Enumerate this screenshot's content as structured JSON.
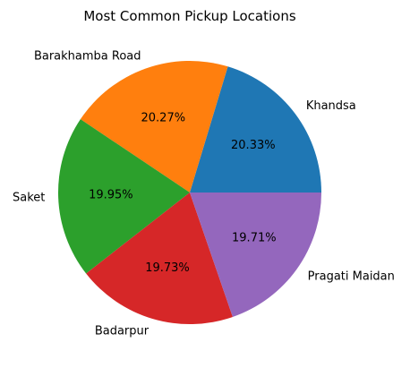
{
  "chart_data": {
    "type": "pie",
    "title": "Most Common Pickup Locations",
    "categories": [
      "Khandsa",
      "Barakhamba Road",
      "Saket",
      "Badarpur",
      "Pragati Maidan"
    ],
    "values": [
      20.33,
      20.27,
      19.95,
      19.73,
      19.71
    ],
    "value_labels": [
      "20.33%",
      "20.27%",
      "19.95%",
      "19.73%",
      "19.71%"
    ],
    "colors": [
      "#1f77b4",
      "#ff7f0e",
      "#2ca02c",
      "#d62728",
      "#9467bd"
    ],
    "start_angle_deg": 0,
    "direction": "counterclockwise",
    "legend": "none"
  }
}
